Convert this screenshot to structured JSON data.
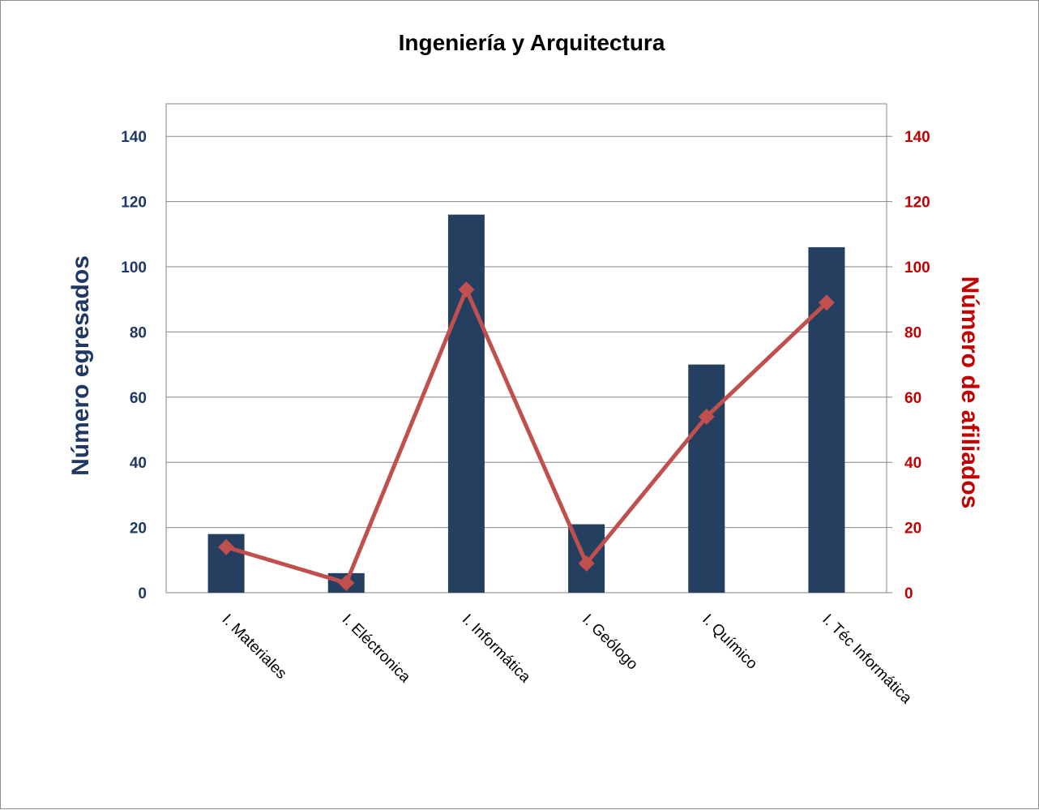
{
  "chart_data": {
    "type": "bar",
    "title": "Ingeniería y Arquitectura",
    "categories": [
      "I.  Materiales",
      "I. Eléctronica",
      "I. Informática",
      "I. Geólogo",
      "I. Químico",
      "I. Téc Informática"
    ],
    "series": [
      {
        "kind": "bar",
        "axis": "left",
        "values": [
          18,
          6,
          116,
          21,
          70,
          106
        ],
        "color": "#243f60"
      },
      {
        "kind": "line",
        "axis": "right",
        "marker": "diamond",
        "values": [
          14,
          3,
          93,
          9,
          54,
          89
        ],
        "color": "#c0504d"
      }
    ],
    "ylabel": "Número egresados",
    "y2label": "Número de afiliados",
    "ylim": [
      0,
      150
    ],
    "y2lim": [
      0,
      150
    ],
    "yticks": [
      0,
      20,
      40,
      60,
      80,
      100,
      120,
      140
    ],
    "y2ticks": [
      0,
      20,
      40,
      60,
      80,
      100,
      120,
      140
    ],
    "grid": true,
    "colors": {
      "left_axis": "#1f3864",
      "right_axis": "#c00000",
      "gridline": "#868686"
    }
  }
}
